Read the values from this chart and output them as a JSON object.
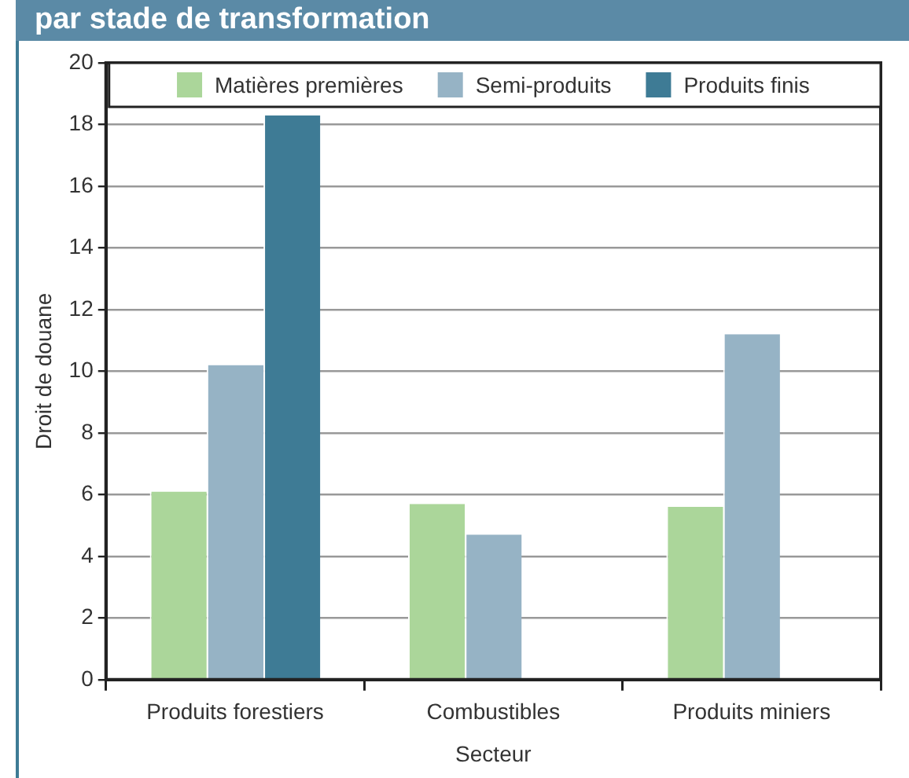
{
  "chart_data": {
    "type": "bar",
    "title": "par stade de transformation",
    "xlabel": "Secteur",
    "ylabel": "Droit de douane",
    "categories": [
      "Produits forestiers",
      "Combustibles",
      "Produits miniers"
    ],
    "series": [
      {
        "name": "Matières premières",
        "color": "#abd69a",
        "values": [
          6.1,
          5.7,
          5.6
        ]
      },
      {
        "name": "Semi-produits",
        "color": "#96b3c5",
        "values": [
          10.2,
          4.7,
          11.2
        ]
      },
      {
        "name": "Produits finis",
        "color": "#3e7b95",
        "values": [
          18.3,
          null,
          null
        ]
      }
    ],
    "ylim": [
      0,
      20
    ],
    "yticks": [
      0,
      2,
      4,
      6,
      8,
      10,
      12,
      14,
      16,
      18,
      20
    ],
    "grid": "y",
    "legend": "top"
  }
}
